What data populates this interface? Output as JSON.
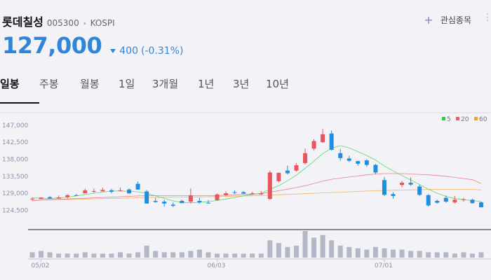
{
  "stock": {
    "name": "롯데칠성",
    "code": "005300",
    "market": "KOSPI",
    "price": "127,000",
    "change": "400",
    "change_pct": "(-0.31%)",
    "direction": "down"
  },
  "watch": {
    "label": "관심종목"
  },
  "icons": {
    "add": "plus-icon",
    "more": "more-vertical-icon",
    "change": "down-triangle-icon"
  },
  "tabs": [
    {
      "label": "일봉",
      "active": true
    },
    {
      "label": "주봉",
      "active": false
    },
    {
      "label": "월봉",
      "active": false
    },
    {
      "label": "1일",
      "active": false
    },
    {
      "label": "3개월",
      "active": false
    },
    {
      "label": "1년",
      "active": false
    },
    {
      "label": "3년",
      "active": false
    },
    {
      "label": "10년",
      "active": false
    }
  ],
  "colors": {
    "accent": "#2f86d8",
    "up": "#e9545e",
    "down": "#1e8fe0",
    "ma5": "#2ecc40",
    "ma20": "#e85b6b",
    "ma60": "#f0a030",
    "volume": "#b3b8c6"
  },
  "chart_data": {
    "type": "candlestick",
    "ylim": [
      122000,
      149000
    ],
    "yticks": [
      124500,
      129000,
      133500,
      138000,
      142500,
      147000
    ],
    "ytick_labels": [
      "124,500",
      "129,000",
      "133,500",
      "138,000",
      "142,500",
      "147,000"
    ],
    "xtick_labels": [
      {
        "index": 1,
        "label": "05/02"
      },
      {
        "index": 21,
        "label": "06/03"
      },
      {
        "index": 40,
        "label": "07/01"
      }
    ],
    "legend": [
      {
        "label": "5",
        "color": "#2ecc40"
      },
      {
        "label": "20",
        "color": "#e85b6b"
      },
      {
        "label": "60",
        "color": "#f0a030"
      }
    ],
    "candles": [
      [
        127500,
        127600,
        127000,
        127900
      ],
      [
        127500,
        127900,
        127500,
        127900
      ],
      [
        128000,
        127600,
        128200,
        127600
      ],
      [
        127600,
        127900,
        128400,
        127600
      ],
      [
        128000,
        128500,
        128800,
        127600
      ],
      [
        128500,
        128300,
        128800,
        128300
      ],
      [
        129000,
        129800,
        130200,
        129000
      ],
      [
        129500,
        129600,
        130200,
        129000
      ],
      [
        129500,
        129900,
        130500,
        129500
      ],
      [
        129800,
        129400,
        130200,
        129000
      ],
      [
        129600,
        129800,
        130500,
        129500
      ],
      [
        130000,
        129000,
        130300,
        128800
      ],
      [
        131500,
        130000,
        132100,
        130000
      ],
      [
        129500,
        126300,
        129900,
        126300
      ],
      [
        127000,
        126700,
        127800,
        126500
      ],
      [
        126800,
        126300,
        127300,
        125500
      ],
      [
        126000,
        125700,
        126600,
        125300
      ],
      [
        127000,
        126400,
        127300,
        126400
      ],
      [
        126800,
        128400,
        130300,
        126300
      ],
      [
        127000,
        126600,
        127800,
        126300
      ],
      [
        126500,
        126400,
        127200,
        126300
      ],
      [
        127200,
        128700,
        129000,
        127000
      ],
      [
        128500,
        129000,
        129500,
        128200
      ],
      [
        129300,
        129200,
        129800,
        128800
      ],
      [
        129300,
        128900,
        129600,
        128800
      ],
      [
        129000,
        129000,
        129400,
        128600
      ],
      [
        128700,
        129000,
        129600,
        128600
      ],
      [
        127500,
        134500,
        135000,
        127300
      ],
      [
        132200,
        134400,
        134500,
        131900
      ],
      [
        135000,
        134300,
        136300,
        134000
      ],
      [
        135000,
        136400,
        137000,
        134700
      ],
      [
        137000,
        139600,
        140800,
        136600
      ],
      [
        140800,
        142800,
        143300,
        140300
      ],
      [
        142500,
        144600,
        146000,
        142300
      ],
      [
        144800,
        140500,
        145600,
        140300
      ],
      [
        139600,
        138300,
        140700,
        137600
      ],
      [
        138200,
        137600,
        138900,
        137300
      ],
      [
        137500,
        136800,
        137600,
        136300
      ],
      [
        137700,
        136500,
        138000,
        136000
      ],
      [
        136500,
        134500,
        136800,
        134000
      ],
      [
        132500,
        128600,
        133300,
        128300
      ],
      [
        128800,
        128300,
        129300,
        127600
      ],
      [
        131200,
        131800,
        132300,
        130600
      ],
      [
        131800,
        131300,
        133200,
        131000
      ],
      [
        130800,
        128600,
        131300,
        128300
      ],
      [
        128500,
        125800,
        128800,
        125500
      ],
      [
        127000,
        126500,
        127300,
        126300
      ],
      [
        127800,
        126800,
        128400,
        126500
      ],
      [
        126600,
        127300,
        128300,
        126300
      ],
      [
        127200,
        127400,
        127800,
        126800
      ],
      [
        127300,
        126400,
        127600,
        126300
      ],
      [
        126600,
        125300,
        126800,
        125300
      ]
    ],
    "volume": [
      4,
      5,
      4,
      3,
      3,
      3,
      4,
      3,
      3,
      3,
      4,
      3,
      4,
      9,
      5,
      4,
      4,
      4,
      5,
      6,
      4,
      3,
      3,
      3,
      3,
      3,
      3,
      13,
      11,
      8,
      9,
      20,
      15,
      17,
      13,
      9,
      8,
      7,
      6,
      8,
      7,
      6,
      6,
      5,
      5,
      4,
      4,
      4,
      3,
      4,
      3,
      4
    ],
    "ma5": [
      127800,
      127700,
      127600,
      127800,
      128000,
      128300,
      128700,
      129000,
      129300,
      129600,
      129600,
      129500,
      129400,
      129000,
      128300,
      127700,
      127000,
      126600,
      126500,
      126600,
      126800,
      127100,
      127500,
      127900,
      128300,
      128700,
      129000,
      130000,
      131000,
      132300,
      133800,
      135600,
      137500,
      139500,
      140900,
      141600,
      141000,
      140000,
      139000,
      137800,
      136200,
      134900,
      133700,
      132500,
      131300,
      130100,
      129000,
      128200,
      127600,
      127300,
      127100,
      126800
    ],
    "ma20": [
      127000,
      127200,
      127300,
      127400,
      127500,
      127600,
      127700,
      127800,
      127900,
      128000,
      128100,
      128200,
      128300,
      128350,
      128400,
      128400,
      128400,
      128400,
      128400,
      128400,
      128400,
      128400,
      128500,
      128600,
      128700,
      128800,
      128900,
      129300,
      129700,
      130100,
      130500,
      131000,
      131600,
      132200,
      132700,
      133000,
      133300,
      133600,
      133900,
      134100,
      134200,
      134200,
      134200,
      134100,
      134000,
      133900,
      133700,
      133500,
      133200,
      132900,
      132600,
      131600
    ],
    "ma60": [
      127200,
      127250,
      127300,
      127350,
      127400,
      127450,
      127500,
      127550,
      127600,
      127650,
      127700,
      127750,
      127800,
      127850,
      127900,
      127950,
      128000,
      128000,
      128000,
      128050,
      128100,
      128150,
      128200,
      128250,
      128300,
      128350,
      128400,
      128500,
      128600,
      128700,
      128800,
      128900,
      129000,
      129100,
      129200,
      129300,
      129400,
      129500,
      129600,
      129700,
      129750,
      129800,
      129850,
      129900,
      129950,
      130000,
      130000,
      130000,
      130000,
      130000,
      130000,
      129900
    ]
  }
}
